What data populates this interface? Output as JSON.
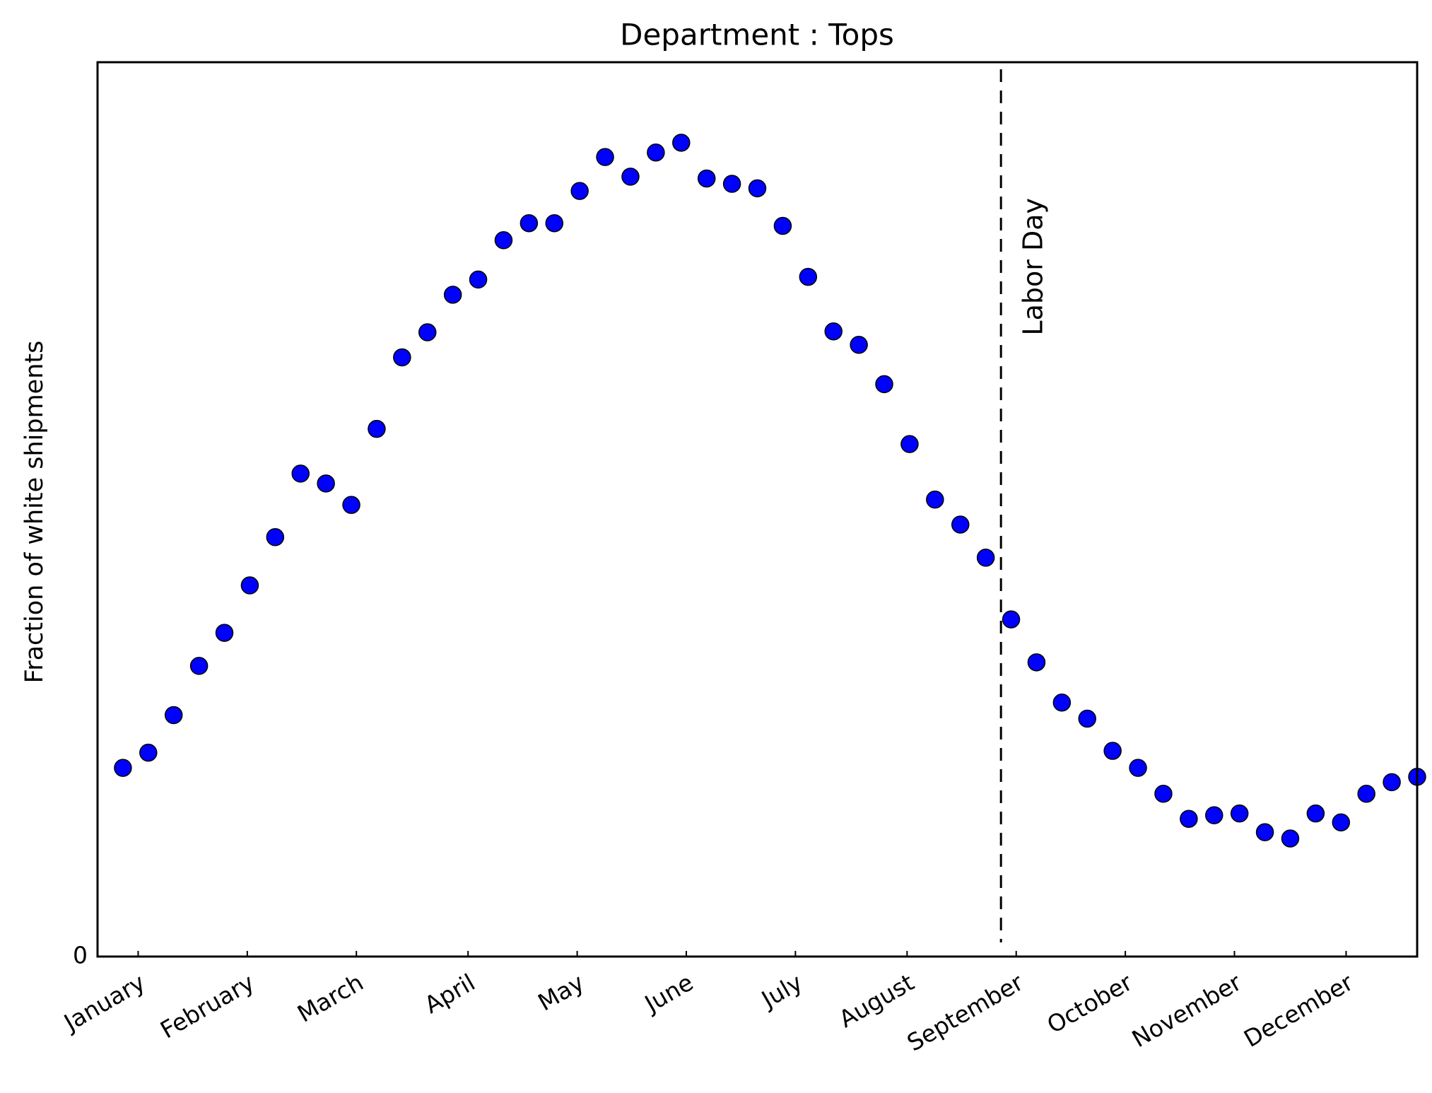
{
  "chart_data": {
    "type": "scatter",
    "title": "Department : Tops",
    "y_label": "Fraction of white shipments",
    "x": [
      1,
      2,
      3,
      4,
      5,
      6,
      7,
      8,
      9,
      10,
      11,
      12,
      13,
      14,
      15,
      16,
      17,
      18,
      19,
      20,
      21,
      22,
      23,
      24,
      25,
      26,
      27,
      28,
      29,
      30,
      31,
      32,
      33,
      34,
      35,
      36,
      37,
      38,
      39,
      40,
      41,
      42,
      43,
      44,
      45,
      46,
      47,
      48,
      49,
      50,
      51,
      52
    ],
    "values": [
      0.211,
      0.228,
      0.27,
      0.325,
      0.362,
      0.415,
      0.469,
      0.54,
      0.529,
      0.505,
      0.59,
      0.67,
      0.698,
      0.74,
      0.757,
      0.801,
      0.82,
      0.82,
      0.856,
      0.894,
      0.872,
      0.899,
      0.91,
      0.87,
      0.864,
      0.859,
      0.817,
      0.76,
      0.699,
      0.684,
      0.64,
      0.573,
      0.511,
      0.483,
      0.446,
      0.377,
      0.329,
      0.284,
      0.266,
      0.23,
      0.211,
      0.182,
      0.154,
      0.158,
      0.16,
      0.139,
      0.132,
      0.16,
      0.15,
      0.182,
      0.195,
      0.201
    ],
    "color": "#0000ff",
    "xlim": [
      0,
      52
    ],
    "ylim": [
      0,
      1
    ],
    "yticks": [
      0
    ],
    "xticks": [
      {
        "value": 1.6,
        "label": "January"
      },
      {
        "value": 5.9,
        "label": "February"
      },
      {
        "value": 10.2,
        "label": "March"
      },
      {
        "value": 14.6,
        "label": "April"
      },
      {
        "value": 18.9,
        "label": "May"
      },
      {
        "value": 23.2,
        "label": "June"
      },
      {
        "value": 27.5,
        "label": "July"
      },
      {
        "value": 31.9,
        "label": "August"
      },
      {
        "value": 36.2,
        "label": "September"
      },
      {
        "value": 40.5,
        "label": "October"
      },
      {
        "value": 44.8,
        "label": "November"
      },
      {
        "value": 49.2,
        "label": "December"
      }
    ],
    "annotations": [
      {
        "text": "Labor Day",
        "x": 35.6
      }
    ]
  }
}
